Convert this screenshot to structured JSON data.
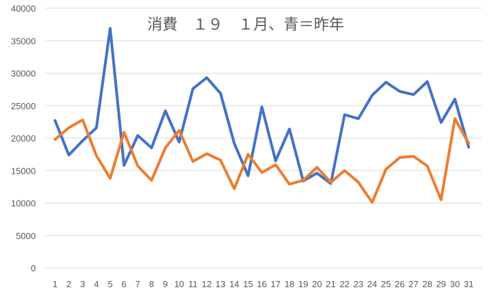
{
  "chart_data": {
    "type": "line",
    "title": "消費　１９　１月、青＝昨年",
    "xlabel": "",
    "ylabel": "",
    "x": [
      "1",
      "2",
      "3",
      "4",
      "5",
      "6",
      "7",
      "8",
      "9",
      "10",
      "11",
      "12",
      "13",
      "14",
      "15",
      "16",
      "17",
      "18",
      "19",
      "20",
      "21",
      "22",
      "23",
      "24",
      "25",
      "26",
      "27",
      "28",
      "29",
      "30",
      "31"
    ],
    "ylim": [
      0,
      40000
    ],
    "yticks": [
      0,
      5000,
      10000,
      15000,
      20000,
      25000,
      30000,
      35000,
      40000
    ],
    "grid": true,
    "legend": "none",
    "series": [
      {
        "color": "#4472c4",
        "values": [
          22700,
          17400,
          19600,
          21600,
          36900,
          15800,
          20400,
          18500,
          24200,
          19400,
          27600,
          29300,
          26900,
          19200,
          14200,
          24800,
          16500,
          21400,
          13400,
          14600,
          13000,
          23600,
          23000,
          26600,
          28600,
          27200,
          26700,
          28700,
          22400,
          26000,
          18600
        ]
      },
      {
        "color": "#ed7d31",
        "values": [
          19800,
          21600,
          22800,
          17300,
          13800,
          20900,
          15700,
          13500,
          18500,
          21200,
          16400,
          17600,
          16600,
          12200,
          17500,
          14700,
          15900,
          12900,
          13500,
          15500,
          13200,
          15000,
          13200,
          10100,
          15200,
          17000,
          17200,
          15700,
          10500,
          23000,
          19200
        ]
      }
    ]
  }
}
